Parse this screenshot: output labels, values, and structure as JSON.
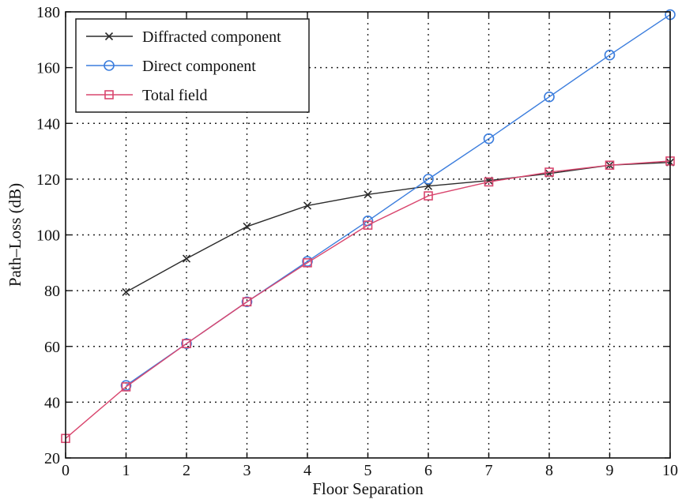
{
  "chart_data": {
    "type": "line",
    "title": "",
    "xlabel": "Floor Separation",
    "ylabel": "Path–Loss (dB)",
    "xlim": [
      0,
      10
    ],
    "ylim": [
      20,
      180
    ],
    "xticks": [
      0,
      1,
      2,
      3,
      4,
      5,
      6,
      7,
      8,
      9,
      10
    ],
    "yticks": [
      20,
      40,
      60,
      80,
      100,
      120,
      140,
      160,
      180
    ],
    "grid": true,
    "legend_position": "top-left",
    "series": [
      {
        "name": "Diffracted component",
        "color": "#2b2b2b",
        "marker": "x",
        "x": [
          1,
          2,
          3,
          4,
          5,
          6,
          7,
          8,
          9,
          10
        ],
        "y": [
          79.5,
          91.5,
          103,
          110.5,
          114.5,
          117.5,
          119.5,
          122,
          125,
          126
        ]
      },
      {
        "name": "Direct component",
        "color": "#3b7ddd",
        "marker": "circle",
        "x": [
          1,
          2,
          3,
          4,
          5,
          6,
          7,
          8,
          9,
          10
        ],
        "y": [
          46,
          61,
          76,
          90.5,
          105,
          120,
          134.5,
          149.5,
          164.5,
          179
        ]
      },
      {
        "name": "Total field",
        "color": "#d9466e",
        "marker": "square",
        "x": [
          0,
          1,
          2,
          3,
          4,
          5,
          6,
          7,
          8,
          9,
          10
        ],
        "y": [
          27,
          45.5,
          61,
          76,
          90,
          103.5,
          114,
          119,
          122.5,
          125,
          126.5
        ]
      }
    ]
  }
}
